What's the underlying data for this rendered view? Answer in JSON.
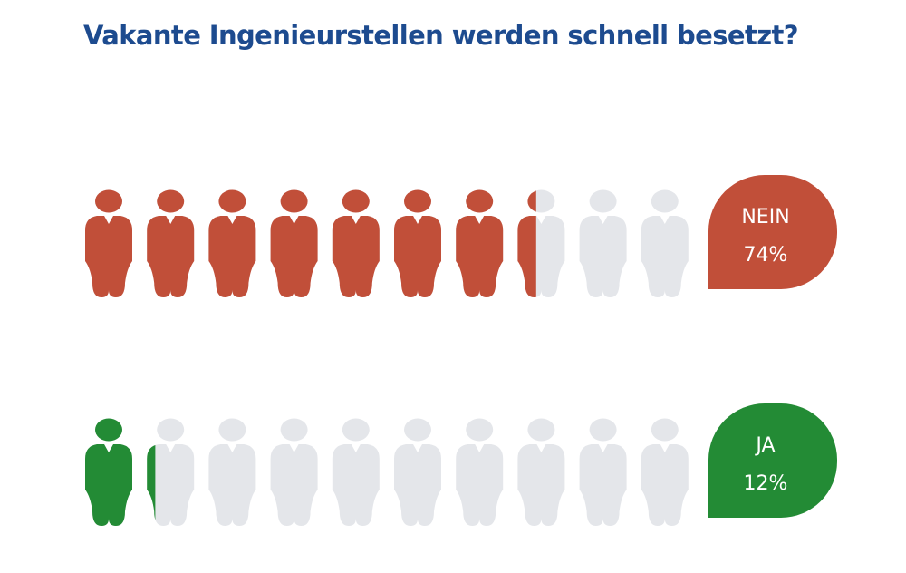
{
  "title": "Vakante Ingenieurstellen werden schnell besetzt?",
  "colors": {
    "title": "#1d4b8f",
    "nein": "#c14f39",
    "ja": "#238b35",
    "empty": "#e4e6ea",
    "text_on_badge": "#ffffff"
  },
  "chart_data": {
    "type": "pictograph",
    "title": "Vakante Ingenieurstellen werden schnell besetzt?",
    "icons_per_row": 10,
    "icon": "person-icon",
    "series": [
      {
        "name": "NEIN",
        "value": 74,
        "display": "74%",
        "color": "#c14f39"
      },
      {
        "name": "JA",
        "value": 12,
        "display": "12%",
        "color": "#238b35"
      }
    ]
  }
}
